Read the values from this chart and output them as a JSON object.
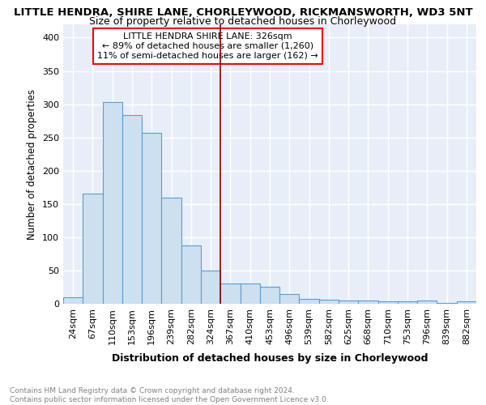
{
  "title": "LITTLE HENDRA, SHIRE LANE, CHORLEYWOOD, RICKMANSWORTH, WD3 5NT",
  "subtitle": "Size of property relative to detached houses in Chorleywood",
  "xlabel": "Distribution of detached houses by size in Chorleywood",
  "ylabel": "Number of detached properties",
  "categories": [
    "24sqm",
    "67sqm",
    "110sqm",
    "153sqm",
    "196sqm",
    "239sqm",
    "282sqm",
    "324sqm",
    "367sqm",
    "410sqm",
    "453sqm",
    "496sqm",
    "539sqm",
    "582sqm",
    "625sqm",
    "668sqm",
    "710sqm",
    "753sqm",
    "796sqm",
    "839sqm",
    "882sqm"
  ],
  "values": [
    10,
    165,
    303,
    284,
    257,
    160,
    88,
    50,
    31,
    30,
    26,
    15,
    7,
    6,
    5,
    5,
    4,
    4,
    5,
    1,
    4
  ],
  "bar_color": "#cce0f0",
  "bar_edge_color": "#5b9bd5",
  "annotation_line_index": 7,
  "annotation_line_color": "#8b0000",
  "annotation_box_text": "LITTLE HENDRA SHIRE LANE: 326sqm\n← 89% of detached houses are smaller (1,260)\n11% of semi-detached houses are larger (162) →",
  "ylim": [
    0,
    420
  ],
  "yticks": [
    0,
    50,
    100,
    150,
    200,
    250,
    300,
    350,
    400
  ],
  "background_color": "#e8eef8",
  "grid_color": "#ffffff",
  "footer_text": "Contains HM Land Registry data © Crown copyright and database right 2024.\nContains public sector information licensed under the Open Government Licence v3.0.",
  "title_fontsize": 9.5,
  "subtitle_fontsize": 9.0,
  "xlabel_fontsize": 9.0,
  "ylabel_fontsize": 8.5,
  "tick_fontsize": 8.0,
  "annotation_fontsize": 8.0,
  "footer_fontsize": 6.5
}
